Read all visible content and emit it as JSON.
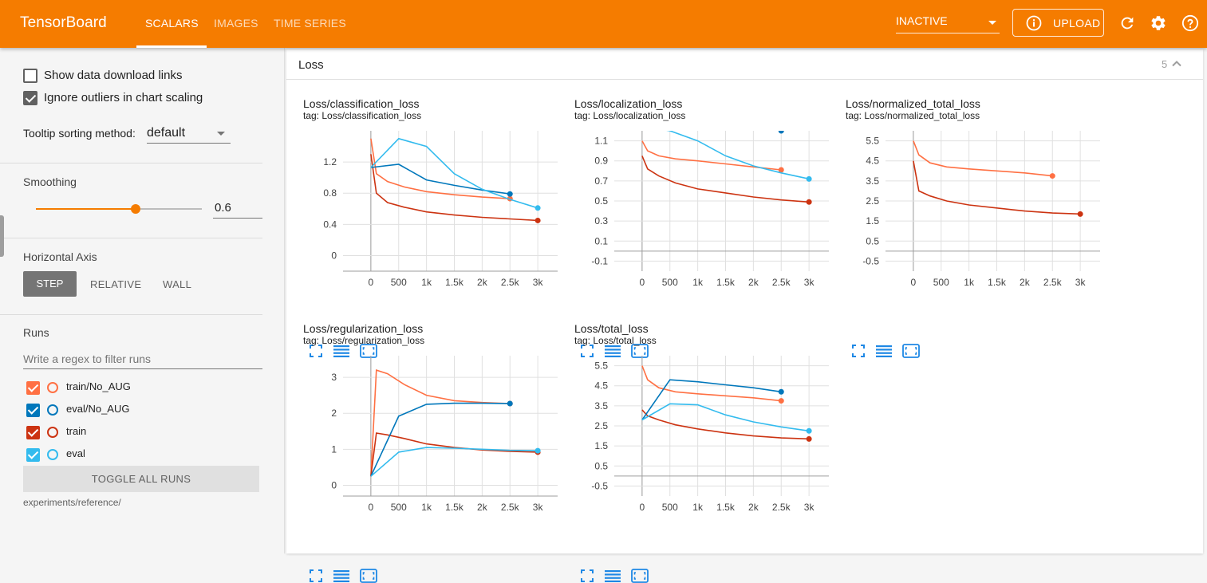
{
  "app": {
    "title": "TensorBoard"
  },
  "tabs": [
    {
      "label": "SCALARS",
      "active": true
    },
    {
      "label": "IMAGES",
      "active": false
    },
    {
      "label": "TIME SERIES",
      "active": false
    }
  ],
  "header": {
    "plugin_selector": "INACTIVE",
    "upload_label": "UPLOAD",
    "icons": [
      "info-icon",
      "refresh-icon",
      "settings-icon",
      "help-icon"
    ]
  },
  "sidebar": {
    "show_download_links": {
      "label": "Show data download links",
      "checked": false
    },
    "ignore_outliers": {
      "label": "Ignore outliers in chart scaling",
      "checked": true
    },
    "tooltip_sorting": {
      "label": "Tooltip sorting method:",
      "value": "default"
    },
    "smoothing": {
      "label": "Smoothing",
      "value": "0.6",
      "fraction": 0.6
    },
    "horizontal_axis": {
      "label": "Horizontal Axis",
      "options": [
        "STEP",
        "RELATIVE",
        "WALL"
      ],
      "selected": "STEP"
    },
    "runs": {
      "label": "Runs",
      "filter_placeholder": "Write a regex to filter runs",
      "items": [
        {
          "name": "train/No_AUG",
          "color": "#ff7043",
          "checked": true
        },
        {
          "name": "eval/No_AUG",
          "color": "#0077bb",
          "checked": true
        },
        {
          "name": "train",
          "color": "#cc3311",
          "checked": true
        },
        {
          "name": "eval",
          "color": "#33bbee",
          "checked": true
        }
      ],
      "toggle_all": "TOGGLE ALL RUNS",
      "log_dir": "experiments/reference/"
    }
  },
  "group": {
    "name": "Loss",
    "count": "5"
  },
  "colors": {
    "accent": "#f57c00",
    "train_no_aug": "#ff7043",
    "eval_no_aug": "#0077bb",
    "train": "#cc3311",
    "eval": "#33bbee"
  },
  "cards": [
    {
      "title": "Loss/classification_loss",
      "tag": "tag: Loss/classification_loss"
    },
    {
      "title": "Loss/localization_loss",
      "tag": "tag: Loss/localization_loss"
    },
    {
      "title": "Loss/normalized_total_loss",
      "tag": "tag: Loss/normalized_total_loss"
    },
    {
      "title": "Loss/regularization_loss",
      "tag": "tag: Loss/regularization_loss"
    },
    {
      "title": "Loss/total_loss",
      "tag": "tag: Loss/total_loss"
    }
  ],
  "chart_data": [
    {
      "type": "line",
      "title": "Loss/classification_loss",
      "xlim": [
        -500,
        3500
      ],
      "ylim": [
        -0.2,
        1.6
      ],
      "x_ticks": [
        "0",
        "500",
        "1k",
        "1.5k",
        "2k",
        "2.5k",
        "3k"
      ],
      "y_ticks": [
        "0",
        "0.4",
        "0.8",
        "1.2"
      ],
      "series": [
        {
          "name": "train/No_AUG",
          "x": [
            0,
            100,
            300,
            600,
            1000,
            1500,
            2000,
            2500
          ],
          "y": [
            1.5,
            1.05,
            0.95,
            0.88,
            0.82,
            0.78,
            0.75,
            0.73
          ]
        },
        {
          "name": "train",
          "x": [
            0,
            100,
            300,
            600,
            1000,
            1500,
            2000,
            2500,
            3000
          ],
          "y": [
            1.3,
            0.8,
            0.68,
            0.62,
            0.56,
            0.52,
            0.49,
            0.47,
            0.45
          ]
        },
        {
          "name": "eval/No_AUG",
          "x": [
            0,
            500,
            1000,
            1500,
            2000,
            2500
          ],
          "y": [
            1.13,
            1.17,
            0.97,
            0.9,
            0.84,
            0.79
          ]
        },
        {
          "name": "eval",
          "x": [
            0,
            500,
            1000,
            1500,
            2000,
            2500,
            3000
          ],
          "y": [
            1.13,
            1.5,
            1.4,
            1.05,
            0.85,
            0.72,
            0.61
          ]
        }
      ]
    },
    {
      "type": "line",
      "title": "Loss/localization_loss",
      "xlim": [
        -500,
        3500
      ],
      "ylim": [
        -0.2,
        1.2
      ],
      "x_ticks": [
        "0",
        "500",
        "1k",
        "1.5k",
        "2k",
        "2.5k",
        "3k"
      ],
      "y_ticks": [
        "-0.1",
        "0.1",
        "0.3",
        "0.5",
        "0.7",
        "0.9",
        "1.1"
      ],
      "series": [
        {
          "name": "train/No_AUG",
          "x": [
            0,
            100,
            300,
            600,
            1000,
            1500,
            2000,
            2500
          ],
          "y": [
            1.1,
            1.0,
            0.95,
            0.92,
            0.9,
            0.87,
            0.84,
            0.81
          ]
        },
        {
          "name": "train",
          "x": [
            0,
            100,
            300,
            600,
            1000,
            1500,
            2000,
            2500,
            3000
          ],
          "y": [
            0.95,
            0.82,
            0.75,
            0.68,
            0.62,
            0.58,
            0.54,
            0.51,
            0.49
          ]
        },
        {
          "name": "eval/No_AUG",
          "x": [
            2500
          ],
          "y": [
            1.2
          ]
        },
        {
          "name": "eval",
          "x": [
            0,
            500,
            1000,
            1500,
            2000,
            2500,
            3000
          ],
          "y": [
            1.25,
            1.2,
            1.1,
            0.95,
            0.85,
            0.78,
            0.72
          ]
        }
      ]
    },
    {
      "type": "line",
      "title": "Loss/normalized_total_loss",
      "xlim": [
        -500,
        3500
      ],
      "ylim": [
        -1.0,
        6.0
      ],
      "x_ticks": [
        "0",
        "500",
        "1k",
        "1.5k",
        "2k",
        "2.5k",
        "3k"
      ],
      "y_ticks": [
        "-0.5",
        "0.5",
        "1.5",
        "2.5",
        "3.5",
        "4.5",
        "5.5"
      ],
      "series": [
        {
          "name": "train/No_AUG",
          "x": [
            0,
            100,
            300,
            600,
            1000,
            1500,
            2000,
            2500
          ],
          "y": [
            5.5,
            4.8,
            4.4,
            4.2,
            4.1,
            4.0,
            3.9,
            3.75
          ]
        },
        {
          "name": "train",
          "x": [
            0,
            100,
            300,
            600,
            1000,
            1500,
            2000,
            2500,
            3000
          ],
          "y": [
            4.5,
            3.0,
            2.75,
            2.5,
            2.3,
            2.15,
            2.0,
            1.9,
            1.85
          ]
        }
      ]
    },
    {
      "type": "line",
      "title": "Loss/regularization_loss",
      "xlim": [
        -500,
        3500
      ],
      "ylim": [
        -0.3,
        3.6
      ],
      "x_ticks": [
        "0",
        "500",
        "1k",
        "1.5k",
        "2k",
        "2.5k",
        "3k"
      ],
      "y_ticks": [
        "0",
        "1",
        "2",
        "3"
      ],
      "series": [
        {
          "name": "train/No_AUG",
          "x": [
            0,
            100,
            300,
            600,
            1000,
            1500,
            2000,
            2500
          ],
          "y": [
            0.25,
            3.2,
            3.1,
            2.8,
            2.5,
            2.35,
            2.3,
            2.27
          ]
        },
        {
          "name": "train",
          "x": [
            0,
            100,
            300,
            600,
            1000,
            1500,
            2000,
            2500,
            3000
          ],
          "y": [
            0.25,
            1.45,
            1.4,
            1.3,
            1.15,
            1.05,
            0.98,
            0.94,
            0.92
          ]
        },
        {
          "name": "eval/No_AUG",
          "x": [
            0,
            500,
            1000,
            1500,
            2000,
            2500
          ],
          "y": [
            0.25,
            1.92,
            2.25,
            2.28,
            2.28,
            2.27
          ]
        },
        {
          "name": "eval",
          "x": [
            0,
            500,
            1000,
            1500,
            2000,
            2500,
            3000
          ],
          "y": [
            0.25,
            0.92,
            1.05,
            1.03,
            1.0,
            0.97,
            0.96
          ]
        }
      ]
    },
    {
      "type": "line",
      "title": "Loss/total_loss",
      "xlim": [
        -500,
        3500
      ],
      "ylim": [
        -1.0,
        6.0
      ],
      "x_ticks": [
        "0",
        "500",
        "1k",
        "1.5k",
        "2k",
        "2.5k",
        "3k"
      ],
      "y_ticks": [
        "-0.5",
        "0.5",
        "1.5",
        "2.5",
        "3.5",
        "4.5",
        "5.5"
      ],
      "series": [
        {
          "name": "train/No_AUG",
          "x": [
            0,
            100,
            300,
            600,
            1000,
            1500,
            2000,
            2500
          ],
          "y": [
            5.5,
            4.8,
            4.4,
            4.2,
            4.1,
            4.0,
            3.9,
            3.75
          ]
        },
        {
          "name": "train",
          "x": [
            0,
            100,
            300,
            600,
            1000,
            1500,
            2000,
            2500,
            3000
          ],
          "y": [
            3.3,
            3.0,
            2.8,
            2.55,
            2.35,
            2.15,
            2.0,
            1.9,
            1.85
          ]
        },
        {
          "name": "eval/No_AUG",
          "x": [
            0,
            500,
            1000,
            1500,
            2000,
            2500
          ],
          "y": [
            2.8,
            4.8,
            4.7,
            4.55,
            4.4,
            4.2
          ]
        },
        {
          "name": "eval",
          "x": [
            0,
            500,
            1000,
            1500,
            2000,
            2500,
            3000
          ],
          "y": [
            2.8,
            3.6,
            3.55,
            3.05,
            2.7,
            2.45,
            2.25
          ]
        }
      ]
    }
  ]
}
